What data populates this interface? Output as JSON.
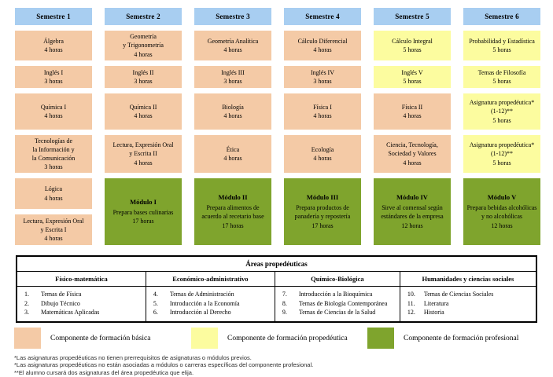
{
  "palette": {
    "header_blue": "#A8CEF1",
    "basic_orange": "#F4CAA6",
    "propedeutic_yellow": "#FCFC9F",
    "professional_green": "#7FA42D"
  },
  "grid": {
    "headers": [
      "Semestre 1",
      "Semestre 2",
      "Semestre 3",
      "Semestre 4",
      "Semestre 5",
      "Semestre 6"
    ],
    "columns": [
      {
        "cells": [
          {
            "text": "Álgebra\n4 horas",
            "type": "basic"
          },
          {
            "text": "Inglés I\n3 horas",
            "type": "basic"
          },
          {
            "text": "Química I\n4 horas",
            "type": "basic"
          },
          {
            "text": "Tecnologías de\nla Información y\nla Comunicación\n3 horas",
            "type": "basic"
          },
          {
            "text": "Lógica\n4 horas",
            "type": "basic"
          },
          {
            "text": "Lectura, Expresión Oral\ny Escrita I\n4 horas",
            "type": "basic"
          }
        ]
      },
      {
        "cells": [
          {
            "text": "Geometría\ny Trigonometría\n4 horas",
            "type": "basic"
          },
          {
            "text": "Inglés II\n3 horas",
            "type": "basic"
          },
          {
            "text": "Química II\n4 horas",
            "type": "basic"
          },
          {
            "text": "Lectura, Expresión Oral\ny Escrita II\n4 horas",
            "type": "basic"
          },
          {
            "title": "Módulo I",
            "text": "Prepara bases culinarias\n17 horas",
            "type": "professional"
          }
        ]
      },
      {
        "cells": [
          {
            "text": "Geometría Analítica\n4 horas",
            "type": "basic"
          },
          {
            "text": "Inglés III\n3 horas",
            "type": "basic"
          },
          {
            "text": "Biología\n4 horas",
            "type": "basic"
          },
          {
            "text": "Ética\n4 horas",
            "type": "basic"
          },
          {
            "title": "Módulo II",
            "text": "Prepara alimentos de\nacuerdo al recetario base\n17 horas",
            "type": "professional"
          }
        ]
      },
      {
        "cells": [
          {
            "text": "Cálculo Diferencial\n4 horas",
            "type": "basic"
          },
          {
            "text": "Inglés IV\n3 horas",
            "type": "basic"
          },
          {
            "text": "Física I\n4 horas",
            "type": "basic"
          },
          {
            "text": "Ecología\n4 horas",
            "type": "basic"
          },
          {
            "title": "Módulo III",
            "text": "Prepara productos de\npanadería y repostería\n17 horas",
            "type": "professional"
          }
        ]
      },
      {
        "cells": [
          {
            "text": "Cálculo Integral\n5 horas",
            "type": "propedeutic"
          },
          {
            "text": "Inglés V\n5 horas",
            "type": "propedeutic"
          },
          {
            "text": "Física II\n4 horas",
            "type": "basic"
          },
          {
            "text": "Ciencia, Tecnología,\nSociedad y Valores\n4 horas",
            "type": "basic"
          },
          {
            "title": "Módulo IV",
            "text": "Sirve al comensal según\nestándares de la empresa\n12 horas",
            "type": "professional"
          }
        ]
      },
      {
        "cells": [
          {
            "text": "Probabilidad y Estadística\n5 horas",
            "type": "propedeutic"
          },
          {
            "text": "Temas de Filosofía\n5 horas",
            "type": "propedeutic"
          },
          {
            "text": "Asignatura propedéutica*\n(1-12)**\n5 horas",
            "type": "propedeutic"
          },
          {
            "text": "Asignatura propedéutica*\n(1-12)**\n5 horas",
            "type": "propedeutic"
          },
          {
            "title": "Módulo V",
            "text": "Prepara bebidas alcohólicas\ny no alcohólicas\n12 horas",
            "type": "professional"
          }
        ]
      }
    ]
  },
  "areas_table": {
    "title": "Áreas propedéuticas",
    "areas": [
      {
        "name": "Físico-matemática",
        "items": [
          {
            "n": "1.",
            "label": "Temas de Física"
          },
          {
            "n": "2.",
            "label": "Dibujo Técnico"
          },
          {
            "n": "3.",
            "label": "Matemáticas Aplicadas"
          }
        ]
      },
      {
        "name": "Económico-administrativo",
        "items": [
          {
            "n": "4.",
            "label": "Temas de Administración"
          },
          {
            "n": "5.",
            "label": "Introducción a la Economía"
          },
          {
            "n": "6.",
            "label": "Introducción al Derecho"
          }
        ]
      },
      {
        "name": "Químico-Biológica",
        "items": [
          {
            "n": "7.",
            "label": "Introducción a la Bioquímica"
          },
          {
            "n": "8.",
            "label": "Temas de Biología Contemporánea"
          },
          {
            "n": "9.",
            "label": "Temas de Ciencias de la Salud"
          }
        ]
      },
      {
        "name": "Humanidades y ciencias sociales",
        "items": [
          {
            "n": "10.",
            "label": "Temas de Ciencias Sociales"
          },
          {
            "n": "11.",
            "label": "Literatura"
          },
          {
            "n": "12.",
            "label": "Historia"
          }
        ]
      }
    ]
  },
  "legend": [
    {
      "label": "Componente de formación básica",
      "type": "basic"
    },
    {
      "label": "Componente de formación propedéutica",
      "type": "propedeutic"
    },
    {
      "label": "Componente de formación profesional",
      "type": "professional"
    }
  ],
  "footnotes": [
    "*Las asignaturas propedéuticas no tienen prerrequisitos de asignaturas o módulos previos.",
    "*Las asignaturas propedéuticas no están asociadas a módulos o carreras específicas del componente profesional.",
    "**El alumno cursará dos asignaturas del área propedéutica que elija."
  ]
}
